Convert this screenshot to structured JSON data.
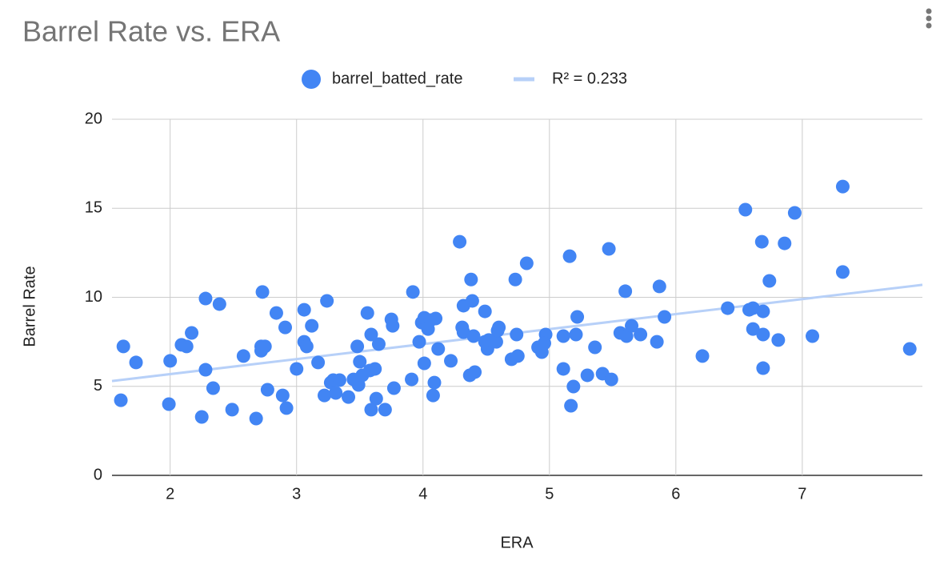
{
  "chart_data": {
    "type": "scatter",
    "title": "Barrel Rate vs. ERA",
    "x_label": "ERA",
    "y_label": "Barrel Rate",
    "xlim": [
      1.54,
      7.95
    ],
    "ylim": [
      0,
      20
    ],
    "xticks": [
      2,
      3,
      4,
      5,
      6,
      7
    ],
    "yticks": [
      0,
      5,
      10,
      15,
      20
    ],
    "grid": true,
    "legend": "top",
    "series": [
      {
        "name": "barrel_batted_rate",
        "color": "#4285f4",
        "x": [
          1.61,
          1.63,
          1.73,
          2.0,
          1.99,
          2.09,
          2.13,
          2.17,
          2.28,
          2.28,
          2.25,
          2.34,
          2.39,
          2.49,
          2.58,
          2.68,
          2.72,
          2.72,
          2.75,
          2.73,
          2.77,
          2.84,
          2.89,
          2.91,
          2.92,
          3.0,
          3.06,
          3.06,
          3.08,
          3.12,
          3.17,
          3.22,
          3.24,
          3.27,
          3.29,
          3.31,
          3.34,
          3.41,
          3.45,
          3.48,
          3.49,
          3.5,
          3.52,
          3.56,
          3.58,
          3.59,
          3.59,
          3.62,
          3.63,
          3.65,
          3.7,
          3.75,
          3.76,
          3.77,
          3.91,
          3.92,
          3.97,
          3.99,
          4.01,
          4.01,
          4.04,
          4.06,
          4.08,
          4.1,
          4.09,
          4.12,
          4.22,
          4.29,
          4.32,
          4.31,
          4.32,
          4.37,
          4.39,
          4.38,
          4.4,
          4.41,
          4.49,
          4.49,
          4.51,
          4.52,
          4.58,
          4.59,
          4.6,
          4.7,
          4.73,
          4.74,
          4.75,
          4.82,
          4.91,
          4.94,
          4.97,
          4.96,
          5.11,
          5.11,
          5.16,
          5.17,
          5.19,
          5.21,
          5.22,
          5.3,
          5.36,
          5.42,
          5.47,
          5.49,
          5.56,
          5.6,
          5.61,
          5.65,
          5.72,
          5.85,
          5.87,
          5.91,
          6.21,
          6.41,
          6.55,
          6.58,
          6.61,
          6.61,
          6.68,
          6.69,
          6.69,
          6.69,
          6.74,
          6.81,
          6.86,
          6.94,
          7.08,
          7.32,
          7.32,
          7.85
        ],
        "values": [
          4.22,
          7.24,
          6.34,
          6.43,
          4.0,
          7.33,
          7.24,
          8.0,
          5.93,
          9.93,
          3.28,
          4.9,
          9.62,
          3.69,
          6.7,
          3.19,
          7.24,
          7.0,
          7.24,
          10.3,
          4.81,
          9.12,
          4.49,
          8.31,
          3.78,
          5.98,
          7.5,
          9.3,
          7.24,
          8.4,
          6.34,
          4.49,
          9.8,
          5.21,
          5.35,
          4.63,
          5.35,
          4.4,
          5.39,
          7.24,
          5.08,
          6.38,
          5.62,
          9.12,
          5.89,
          3.69,
          7.91,
          5.98,
          4.31,
          7.37,
          3.69,
          8.76,
          8.4,
          4.9,
          5.39,
          10.3,
          7.5,
          8.58,
          8.85,
          6.29,
          8.22,
          8.72,
          4.49,
          8.81,
          5.21,
          7.1,
          6.43,
          13.12,
          9.53,
          8.31,
          8.04,
          5.62,
          9.8,
          11.0,
          7.82,
          5.8,
          9.21,
          7.5,
          7.1,
          7.6,
          7.5,
          8.13,
          8.31,
          6.52,
          11.0,
          7.91,
          6.7,
          11.91,
          7.19,
          6.92,
          7.91,
          7.42,
          7.82,
          5.98,
          12.31,
          3.91,
          4.99,
          7.91,
          8.9,
          5.62,
          7.19,
          5.71,
          12.72,
          5.39,
          8.0,
          10.34,
          7.82,
          8.4,
          7.91,
          7.5,
          10.61,
          8.9,
          6.7,
          9.39,
          14.92,
          9.3,
          9.39,
          8.22,
          13.12,
          9.21,
          7.91,
          6.02,
          10.92,
          7.6,
          13.03,
          14.74,
          7.82,
          16.22,
          11.42,
          7.1
        ]
      }
    ],
    "trendline": {
      "name": "R² = 0.233",
      "color": "#b7d0f8",
      "x": [
        1.54,
        7.95
      ],
      "values": [
        5.3,
        10.7
      ]
    }
  }
}
